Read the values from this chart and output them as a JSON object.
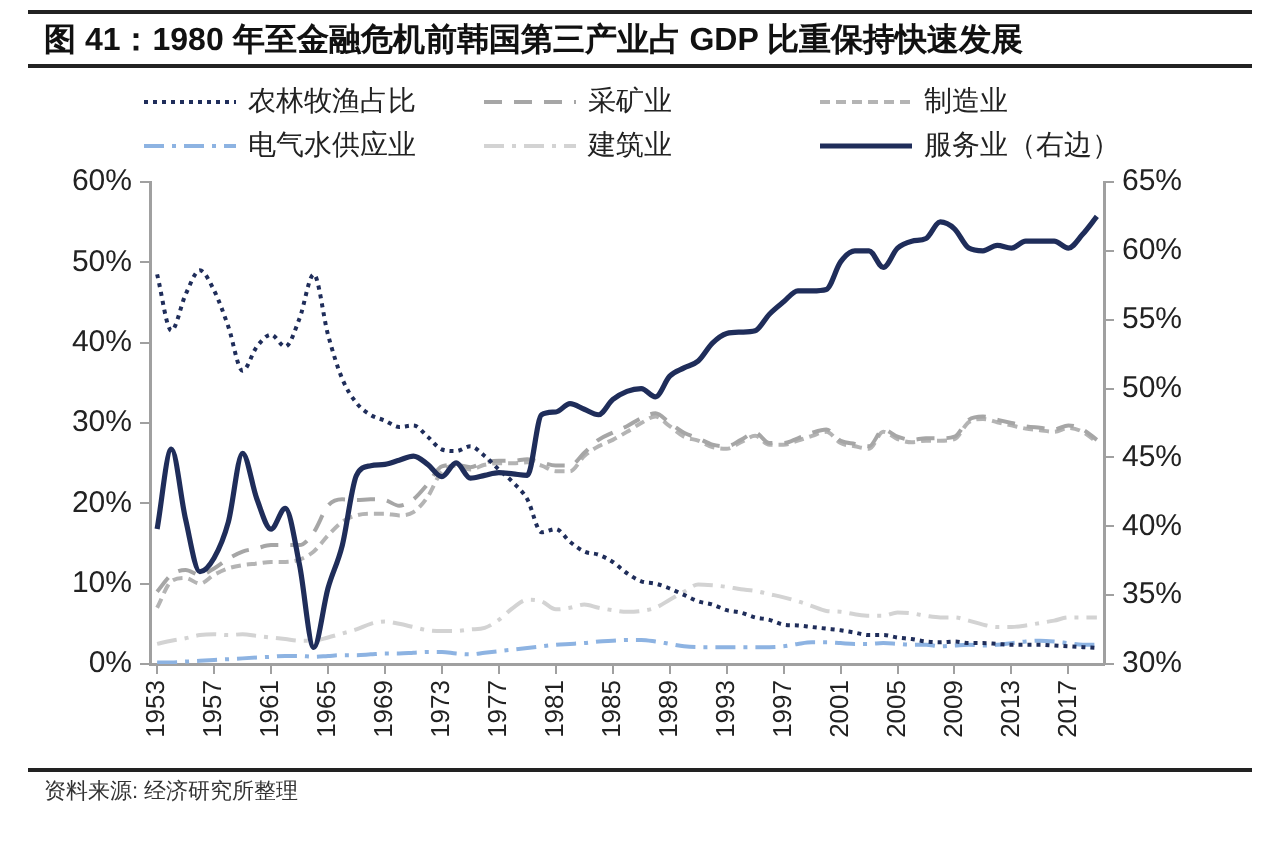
{
  "chart_data": {
    "type": "line",
    "title": "图 41：1980 年至金融危机前韩国第三产业占 GDP 比重保持快速发展",
    "x": [
      1953,
      1954,
      1955,
      1956,
      1957,
      1958,
      1959,
      1960,
      1961,
      1962,
      1963,
      1964,
      1965,
      1966,
      1967,
      1968,
      1969,
      1970,
      1971,
      1972,
      1973,
      1974,
      1975,
      1976,
      1977,
      1978,
      1979,
      1980,
      1981,
      1982,
      1983,
      1984,
      1985,
      1986,
      1987,
      1988,
      1989,
      1990,
      1991,
      1992,
      1993,
      1994,
      1995,
      1996,
      1997,
      1998,
      1999,
      2000,
      2001,
      2002,
      2003,
      2004,
      2005,
      2006,
      2007,
      2008,
      2009,
      2010,
      2011,
      2012,
      2013,
      2014,
      2015,
      2016,
      2017,
      2018,
      2019
    ],
    "xlim": [
      1952.5,
      2019.5
    ],
    "xticks": [
      1953,
      1957,
      1961,
      1965,
      1969,
      1973,
      1977,
      1981,
      1985,
      1989,
      1993,
      1997,
      2001,
      2005,
      2009,
      2013,
      2017
    ],
    "ylim": [
      0,
      60
    ],
    "yticks": [
      {
        "value": 0,
        "label": "0%"
      },
      {
        "value": 10,
        "label": "10%"
      },
      {
        "value": 20,
        "label": "20%"
      },
      {
        "value": 30,
        "label": "30%"
      },
      {
        "value": 40,
        "label": "40%"
      },
      {
        "value": 50,
        "label": "50%"
      },
      {
        "value": 60,
        "label": "60%"
      }
    ],
    "y2lim": [
      30,
      65
    ],
    "y2ticks": [
      {
        "value": 30,
        "label": "30%"
      },
      {
        "value": 35,
        "label": "35%"
      },
      {
        "value": 40,
        "label": "40%"
      },
      {
        "value": 45,
        "label": "45%"
      },
      {
        "value": 50,
        "label": "50%"
      },
      {
        "value": 55,
        "label": "55%"
      },
      {
        "value": 60,
        "label": "60%"
      },
      {
        "value": 65,
        "label": "65%"
      }
    ],
    "legend": "top",
    "series": [
      {
        "name": "农林牧渔占比",
        "color": "#1f2d5a",
        "line_style": "dotted",
        "values": [
          48.5,
          41.5,
          46,
          49,
          46.5,
          42,
          36.5,
          39.5,
          41,
          39.5,
          43,
          48.5,
          41,
          35.5,
          32.5,
          31,
          30.3,
          29.5,
          29.7,
          28.3,
          26.7,
          26.5,
          27.1,
          25.9,
          24.2,
          22.6,
          20.5,
          16.4,
          16.8,
          15.2,
          14,
          13.6,
          12.7,
          11.3,
          10.3,
          10,
          9.4,
          8.6,
          7.8,
          7.4,
          6.7,
          6.4,
          5.8,
          5.5,
          4.9,
          4.8,
          4.6,
          4.4,
          4.2,
          3.9,
          3.6,
          3.6,
          3.3,
          3.1,
          2.8,
          2.7,
          2.8,
          2.6,
          2.6,
          2.5,
          2.4,
          2.4,
          2.4,
          2.3,
          2.2,
          2.1,
          2.0
        ]
      },
      {
        "name": "采矿业",
        "color": "#a6a6a6",
        "line_style": "dashed",
        "values": [
          9,
          11.1,
          11.7,
          11.1,
          11.9,
          13.1,
          14,
          14.4,
          14.8,
          14.8,
          14.8,
          16.4,
          19.7,
          20.5,
          20.4,
          20.5,
          20.4,
          19.7,
          20.5,
          22.4,
          24.6,
          24.8,
          24.5,
          25.1,
          25.3,
          25.3,
          25.5,
          25.1,
          24.7,
          24.7,
          26.3,
          27.9,
          28.8,
          29.6,
          30.6,
          31.2,
          30,
          28.8,
          28.1,
          27.3,
          27.1,
          27.9,
          28.8,
          27.5,
          27.5,
          28.1,
          28.8,
          29.2,
          27.8,
          27.4,
          27.1,
          29.2,
          28.3,
          27.9,
          28.1,
          28.1,
          28.3,
          30.4,
          30.8,
          30.4,
          30,
          29.6,
          29.4,
          29.2,
          29.7,
          29.2,
          27.9
        ]
      },
      {
        "name": "制造业",
        "color": "#b4b4b4",
        "line_style": "dashed",
        "values": [
          7,
          10.3,
          10.7,
          10,
          11.1,
          11.9,
          12.3,
          12.5,
          12.7,
          12.7,
          13,
          14,
          16,
          17.7,
          18.5,
          18.7,
          18.7,
          18.5,
          18.9,
          20.8,
          24,
          24.7,
          24.2,
          24.8,
          25,
          25,
          25.1,
          24.7,
          24,
          24,
          25.9,
          27.1,
          27.9,
          28.9,
          30,
          30.8,
          29.6,
          28.3,
          27.8,
          27,
          26.8,
          27.6,
          28.4,
          27.3,
          27.3,
          27.8,
          28.4,
          28.9,
          27.5,
          27.1,
          26.8,
          28.9,
          28,
          27.6,
          27.8,
          27.8,
          28,
          30.1,
          30.5,
          30.1,
          29.7,
          29.3,
          29.1,
          28.9,
          29.4,
          28.9,
          27.6
        ]
      },
      {
        "name": "电气水供应业",
        "color": "#8db3e2",
        "line_style": "dashdot",
        "values": [
          0.2,
          0.2,
          0.3,
          0.4,
          0.5,
          0.6,
          0.7,
          0.8,
          0.9,
          1,
          1,
          0.9,
          1,
          1.1,
          1.1,
          1.2,
          1.3,
          1.3,
          1.4,
          1.5,
          1.5,
          1.3,
          1.2,
          1.4,
          1.6,
          1.8,
          2,
          2.2,
          2.4,
          2.5,
          2.6,
          2.8,
          2.9,
          3,
          3,
          2.8,
          2.5,
          2.2,
          2.1,
          2.1,
          2.1,
          2.1,
          2.1,
          2.1,
          2.2,
          2.5,
          2.7,
          2.7,
          2.6,
          2.5,
          2.5,
          2.6,
          2.5,
          2.4,
          2.4,
          2.2,
          2.3,
          2.4,
          2.3,
          2.4,
          2.6,
          2.8,
          2.9,
          2.8,
          2.6,
          2.4,
          2.4
        ]
      },
      {
        "name": "建筑业",
        "color": "#d3d3d3",
        "line_style": "dashdot",
        "values": [
          2.5,
          2.9,
          3.2,
          3.6,
          3.7,
          3.6,
          3.7,
          3.5,
          3.3,
          3.1,
          2.9,
          2.9,
          3.3,
          3.8,
          4.3,
          5,
          5.3,
          5,
          4.6,
          4.2,
          4.1,
          4.1,
          4.3,
          4.5,
          5.5,
          7,
          8,
          7.8,
          6.8,
          7,
          7.4,
          7,
          6.7,
          6.5,
          6.6,
          7,
          8,
          9,
          9.9,
          9.8,
          9.6,
          9.3,
          9.1,
          8.7,
          8.3,
          7.8,
          7.2,
          6.6,
          6.5,
          6.2,
          6,
          6,
          6.4,
          6.3,
          6,
          5.8,
          5.8,
          5.4,
          4.9,
          4.6,
          4.6,
          4.8,
          5.1,
          5.4,
          5.8,
          5.8,
          5.8
        ]
      },
      {
        "name": "服务业（右边）",
        "color": "#1f2d5a",
        "line_style": "solid",
        "axis": "y2",
        "values": [
          39.8,
          45.6,
          40.5,
          36.7,
          37.7,
          40.3,
          45.3,
          42,
          39.8,
          41.3,
          37.2,
          31.2,
          35.5,
          38.6,
          43.7,
          44.4,
          44.5,
          44.8,
          45.1,
          44.5,
          43.6,
          44.6,
          43.5,
          43.7,
          43.9,
          43.8,
          43.7,
          48.1,
          48.3,
          48.9,
          48.5,
          48.1,
          49.2,
          49.8,
          50,
          49.4,
          50.9,
          51.5,
          52,
          53.3,
          54,
          54.1,
          54.2,
          55.4,
          56.3,
          57.1,
          57.1,
          57.2,
          59.2,
          60,
          60,
          58.8,
          60.2,
          60.7,
          60.9,
          62.1,
          61.6,
          60.2,
          60,
          60.4,
          60.2,
          60.7,
          60.7,
          60.7,
          60.2,
          61.2,
          62.5
        ]
      }
    ],
    "annotations": [
      "资料来源: 经济研究所整理"
    ]
  }
}
